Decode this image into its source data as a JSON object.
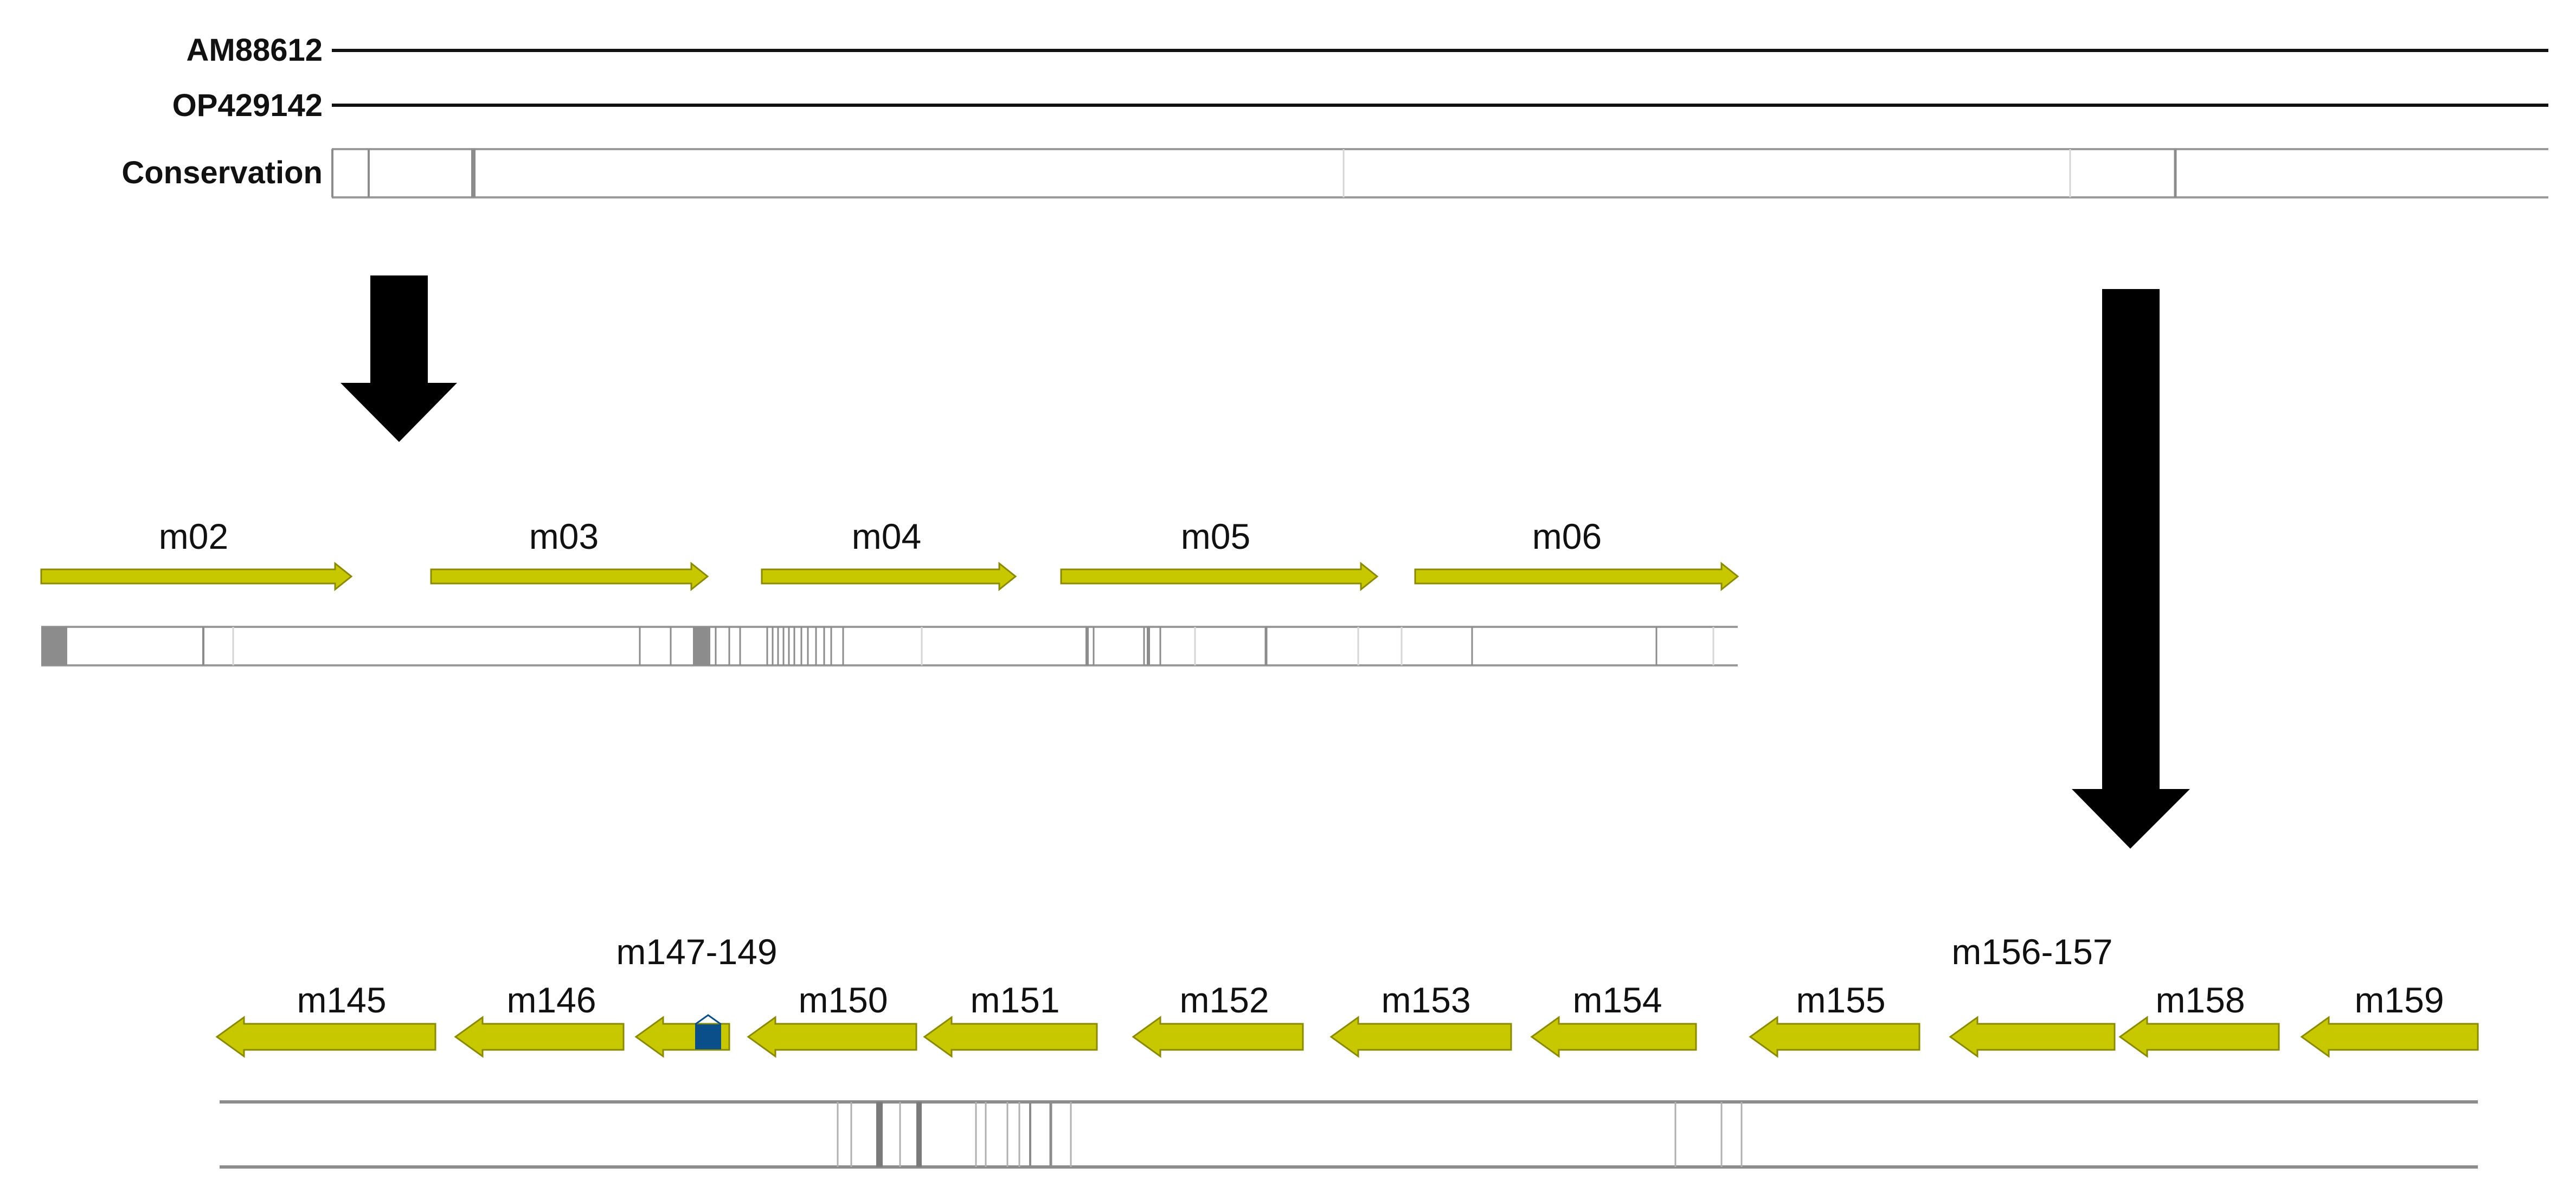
{
  "tracks": {
    "seq1_label": "AM88612",
    "seq2_label": "OP429142",
    "conservation_label": "Conservation"
  },
  "colors": {
    "gene_fill": "#c8c800",
    "gene_stroke": "#8a8a00",
    "highlight_block": "#0a4f8a",
    "conservation_border": "#9a9a9a",
    "variant_line": "#8c8c8c",
    "sequence_line": "#111111",
    "zoom_arrow": "#000000"
  },
  "top_region": {
    "genes": [
      {
        "label": "m02",
        "direction": "forward"
      },
      {
        "label": "m03",
        "direction": "forward"
      },
      {
        "label": "m04",
        "direction": "forward"
      },
      {
        "label": "m05",
        "direction": "forward"
      },
      {
        "label": "m06",
        "direction": "forward"
      }
    ]
  },
  "bottom_region": {
    "genes": [
      {
        "label": "m145",
        "direction": "reverse"
      },
      {
        "label": "m146",
        "direction": "reverse"
      },
      {
        "label": "m147-149",
        "direction": "reverse"
      },
      {
        "label": "m150",
        "direction": "reverse"
      },
      {
        "label": "m151",
        "direction": "reverse"
      },
      {
        "label": "m152",
        "direction": "reverse"
      },
      {
        "label": "m153",
        "direction": "reverse"
      },
      {
        "label": "m154",
        "direction": "reverse"
      },
      {
        "label": "m155",
        "direction": "reverse"
      },
      {
        "label": "m156-157",
        "direction": "reverse"
      },
      {
        "label": "m158",
        "direction": "reverse"
      },
      {
        "label": "m159",
        "direction": "reverse"
      }
    ]
  }
}
